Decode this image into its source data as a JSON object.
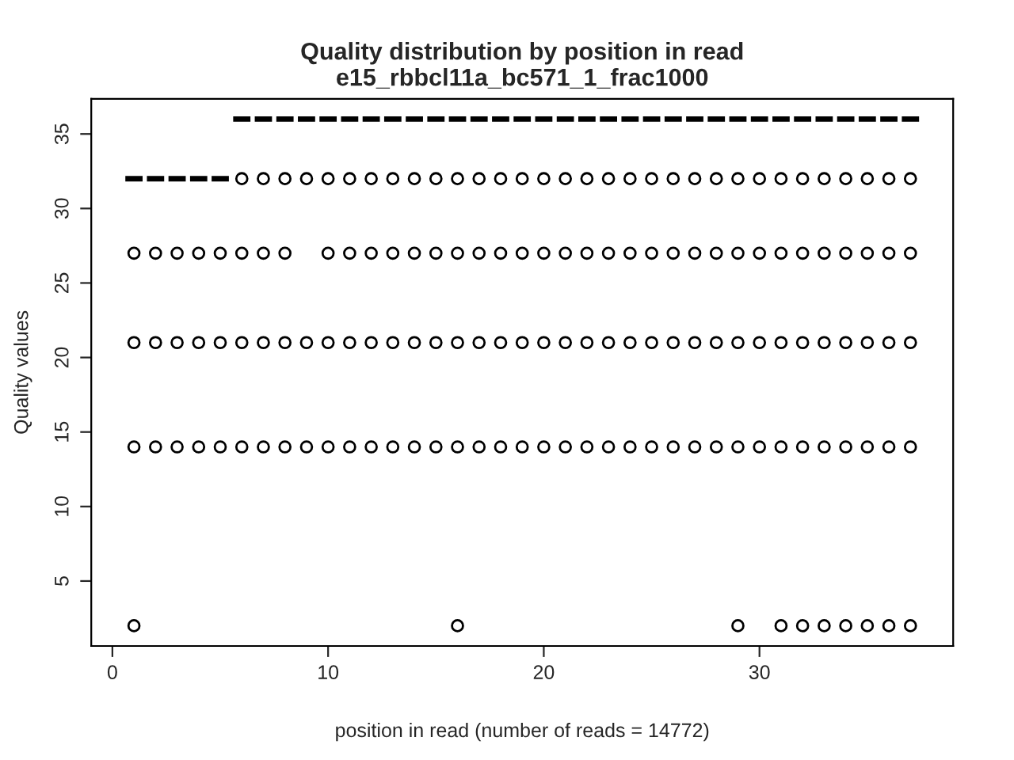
{
  "chart_data": {
    "type": "box",
    "title": "Quality distribution by position in read\ne15_rbbcl11a_bc571_1_frac1000",
    "xlabel": "position in read (number of reads = 14772)",
    "ylabel": "Quality values",
    "x": [
      1,
      2,
      3,
      4,
      5,
      6,
      7,
      8,
      9,
      10,
      11,
      12,
      13,
      14,
      15,
      16,
      17,
      18,
      19,
      20,
      21,
      22,
      23,
      24,
      25,
      26,
      27,
      28,
      29,
      30,
      31,
      32,
      33,
      34,
      35,
      36,
      37
    ],
    "boxes": [
      {
        "low": 32,
        "q1": 32,
        "median": 32,
        "q3": 32,
        "high": 32,
        "outliers": [
          27,
          21,
          14,
          2
        ]
      },
      {
        "low": 32,
        "q1": 32,
        "median": 32,
        "q3": 32,
        "high": 32,
        "outliers": [
          27,
          21,
          14
        ]
      },
      {
        "low": 32,
        "q1": 32,
        "median": 32,
        "q3": 32,
        "high": 32,
        "outliers": [
          27,
          21,
          14
        ]
      },
      {
        "low": 32,
        "q1": 32,
        "median": 32,
        "q3": 32,
        "high": 32,
        "outliers": [
          27,
          21,
          14
        ]
      },
      {
        "low": 32,
        "q1": 32,
        "median": 32,
        "q3": 32,
        "high": 32,
        "outliers": [
          27,
          21,
          14
        ]
      },
      {
        "low": 36,
        "q1": 36,
        "median": 36,
        "q3": 36,
        "high": 36,
        "outliers": [
          32,
          27,
          21,
          14
        ]
      },
      {
        "low": 36,
        "q1": 36,
        "median": 36,
        "q3": 36,
        "high": 36,
        "outliers": [
          32,
          27,
          21,
          14
        ]
      },
      {
        "low": 36,
        "q1": 36,
        "median": 36,
        "q3": 36,
        "high": 36,
        "outliers": [
          32,
          27,
          21,
          14
        ]
      },
      {
        "low": 36,
        "q1": 36,
        "median": 36,
        "q3": 36,
        "high": 36,
        "outliers": [
          32,
          21,
          14
        ]
      },
      {
        "low": 36,
        "q1": 36,
        "median": 36,
        "q3": 36,
        "high": 36,
        "outliers": [
          32,
          27,
          21,
          14
        ]
      },
      {
        "low": 36,
        "q1": 36,
        "median": 36,
        "q3": 36,
        "high": 36,
        "outliers": [
          32,
          27,
          21,
          14
        ]
      },
      {
        "low": 36,
        "q1": 36,
        "median": 36,
        "q3": 36,
        "high": 36,
        "outliers": [
          32,
          27,
          21,
          14
        ]
      },
      {
        "low": 36,
        "q1": 36,
        "median": 36,
        "q3": 36,
        "high": 36,
        "outliers": [
          32,
          27,
          21,
          14
        ]
      },
      {
        "low": 36,
        "q1": 36,
        "median": 36,
        "q3": 36,
        "high": 36,
        "outliers": [
          32,
          27,
          21,
          14
        ]
      },
      {
        "low": 36,
        "q1": 36,
        "median": 36,
        "q3": 36,
        "high": 36,
        "outliers": [
          32,
          27,
          21,
          14
        ]
      },
      {
        "low": 36,
        "q1": 36,
        "median": 36,
        "q3": 36,
        "high": 36,
        "outliers": [
          32,
          27,
          21,
          14,
          2
        ]
      },
      {
        "low": 36,
        "q1": 36,
        "median": 36,
        "q3": 36,
        "high": 36,
        "outliers": [
          32,
          27,
          21,
          14
        ]
      },
      {
        "low": 36,
        "q1": 36,
        "median": 36,
        "q3": 36,
        "high": 36,
        "outliers": [
          32,
          27,
          21,
          14
        ]
      },
      {
        "low": 36,
        "q1": 36,
        "median": 36,
        "q3": 36,
        "high": 36,
        "outliers": [
          32,
          27,
          21,
          14
        ]
      },
      {
        "low": 36,
        "q1": 36,
        "median": 36,
        "q3": 36,
        "high": 36,
        "outliers": [
          32,
          27,
          21,
          14
        ]
      },
      {
        "low": 36,
        "q1": 36,
        "median": 36,
        "q3": 36,
        "high": 36,
        "outliers": [
          32,
          27,
          21,
          14
        ]
      },
      {
        "low": 36,
        "q1": 36,
        "median": 36,
        "q3": 36,
        "high": 36,
        "outliers": [
          32,
          27,
          21,
          14
        ]
      },
      {
        "low": 36,
        "q1": 36,
        "median": 36,
        "q3": 36,
        "high": 36,
        "outliers": [
          32,
          27,
          21,
          14
        ]
      },
      {
        "low": 36,
        "q1": 36,
        "median": 36,
        "q3": 36,
        "high": 36,
        "outliers": [
          32,
          27,
          21,
          14
        ]
      },
      {
        "low": 36,
        "q1": 36,
        "median": 36,
        "q3": 36,
        "high": 36,
        "outliers": [
          32,
          27,
          21,
          14
        ]
      },
      {
        "low": 36,
        "q1": 36,
        "median": 36,
        "q3": 36,
        "high": 36,
        "outliers": [
          32,
          27,
          21,
          14
        ]
      },
      {
        "low": 36,
        "q1": 36,
        "median": 36,
        "q3": 36,
        "high": 36,
        "outliers": [
          32,
          27,
          21,
          14
        ]
      },
      {
        "low": 36,
        "q1": 36,
        "median": 36,
        "q3": 36,
        "high": 36,
        "outliers": [
          32,
          27,
          21,
          14
        ]
      },
      {
        "low": 36,
        "q1": 36,
        "median": 36,
        "q3": 36,
        "high": 36,
        "outliers": [
          32,
          27,
          21,
          14,
          2
        ]
      },
      {
        "low": 36,
        "q1": 36,
        "median": 36,
        "q3": 36,
        "high": 36,
        "outliers": [
          32,
          27,
          21,
          14
        ]
      },
      {
        "low": 36,
        "q1": 36,
        "median": 36,
        "q3": 36,
        "high": 36,
        "outliers": [
          32,
          27,
          21,
          14,
          2
        ]
      },
      {
        "low": 36,
        "q1": 36,
        "median": 36,
        "q3": 36,
        "high": 36,
        "outliers": [
          32,
          27,
          21,
          14,
          2
        ]
      },
      {
        "low": 36,
        "q1": 36,
        "median": 36,
        "q3": 36,
        "high": 36,
        "outliers": [
          32,
          27,
          21,
          14,
          2
        ]
      },
      {
        "low": 36,
        "q1": 36,
        "median": 36,
        "q3": 36,
        "high": 36,
        "outliers": [
          32,
          27,
          21,
          14,
          2
        ]
      },
      {
        "low": 36,
        "q1": 36,
        "median": 36,
        "q3": 36,
        "high": 36,
        "outliers": [
          32,
          27,
          21,
          14,
          2
        ]
      },
      {
        "low": 36,
        "q1": 36,
        "median": 36,
        "q3": 36,
        "high": 36,
        "outliers": [
          32,
          27,
          21,
          14,
          2
        ]
      },
      {
        "low": 36,
        "q1": 36,
        "median": 36,
        "q3": 36,
        "high": 36,
        "outliers": [
          32,
          27,
          21,
          14,
          2
        ]
      }
    ],
    "xlim": [
      -0.98,
      38.98
    ],
    "xticks": [
      0,
      10,
      20,
      30
    ],
    "ylim": [
      0.64,
      37.36
    ],
    "yticks": [
      5,
      10,
      15,
      20,
      25,
      30,
      35
    ],
    "marker": "circle",
    "grid": false,
    "legend": false
  }
}
